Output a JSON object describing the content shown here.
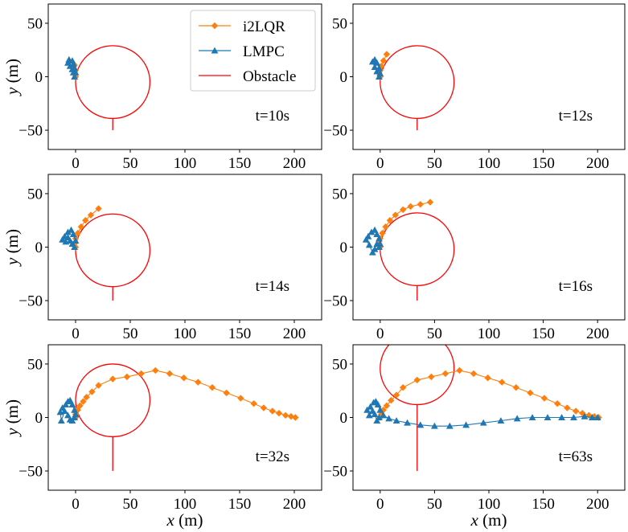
{
  "legend": {
    "placement": "top-right of first panel",
    "entries": [
      {
        "key": "i2lqr",
        "label": "i2LQR",
        "color": "#ff7f0e",
        "marker": "diamond"
      },
      {
        "key": "lmpc",
        "label": "LMPC",
        "color": "#1f77b4",
        "marker": "triangle"
      },
      {
        "key": "obstacle",
        "label": "Obstacle",
        "color": "#ff0000",
        "marker": "line"
      }
    ]
  },
  "axis_labels": {
    "x_var": "x",
    "x_unit": " (m)",
    "y_var": "y",
    "y_unit": " (m)"
  },
  "chart_data": [
    {
      "type": "line",
      "time_label": "t=10s",
      "xlim": [
        -25,
        225
      ],
      "ylim": [
        -68,
        68
      ],
      "xticks": [
        0,
        50,
        100,
        150,
        200
      ],
      "yticks": [
        -50,
        0,
        50
      ],
      "obstacle": {
        "cx": 34,
        "cy": -5,
        "r": 34,
        "tail_to_y": -50
      },
      "series": [
        {
          "key": "i2lqr",
          "x": [
            0,
            -1,
            0,
            -2,
            -1
          ],
          "y": [
            0,
            3,
            6,
            9,
            11
          ]
        },
        {
          "key": "lmpc",
          "x": [
            -1,
            -2,
            -3,
            -5,
            -7,
            -6,
            -3,
            -2,
            -1,
            0
          ],
          "y": [
            0,
            4,
            7,
            10,
            13,
            16,
            15,
            12,
            8,
            4
          ]
        }
      ]
    },
    {
      "type": "line",
      "time_label": "t=12s",
      "xlim": [
        -25,
        225
      ],
      "ylim": [
        -68,
        68
      ],
      "xticks": [
        0,
        50,
        100,
        150,
        200
      ],
      "yticks": [
        -50,
        0,
        50
      ],
      "obstacle": {
        "cx": 34,
        "cy": -5,
        "r": 34,
        "tail_to_y": -50
      },
      "series": [
        {
          "key": "i2lqr",
          "x": [
            0,
            -1,
            0,
            1,
            3,
            6
          ],
          "y": [
            0,
            3,
            6,
            10,
            15,
            21
          ]
        },
        {
          "key": "lmpc",
          "x": [
            -1,
            -3,
            -5,
            -7,
            -5,
            -3,
            -1,
            0
          ],
          "y": [
            0,
            5,
            9,
            14,
            16,
            13,
            8,
            3
          ]
        }
      ]
    },
    {
      "type": "line",
      "time_label": "t=14s",
      "xlim": [
        -25,
        225
      ],
      "ylim": [
        -68,
        68
      ],
      "xticks": [
        0,
        50,
        100,
        150,
        200
      ],
      "yticks": [
        -50,
        0,
        50
      ],
      "obstacle": {
        "cx": 34,
        "cy": -3,
        "r": 34,
        "tail_to_y": -50
      },
      "series": [
        {
          "key": "i2lqr",
          "x": [
            0,
            -1,
            0,
            2,
            5,
            9,
            14,
            21
          ],
          "y": [
            0,
            3,
            8,
            13,
            19,
            25,
            30,
            36
          ]
        },
        {
          "key": "lmpc",
          "x": [
            -1,
            -3,
            -5,
            -7,
            -9,
            -12,
            -10,
            -7,
            -4,
            -2,
            0
          ],
          "y": [
            0,
            3,
            6,
            9,
            5,
            7,
            10,
            14,
            16,
            12,
            6
          ]
        }
      ]
    },
    {
      "type": "line",
      "time_label": "t=16s",
      "xlim": [
        -25,
        225
      ],
      "ylim": [
        -68,
        68
      ],
      "xticks": [
        0,
        50,
        100,
        150,
        200
      ],
      "yticks": [
        -50,
        0,
        50
      ],
      "obstacle": {
        "cx": 34,
        "cy": -2,
        "r": 34,
        "tail_to_y": -50
      },
      "series": [
        {
          "key": "i2lqr",
          "x": [
            0,
            -1,
            0,
            2,
            5,
            9,
            14,
            21,
            28,
            37,
            46
          ],
          "y": [
            0,
            3,
            8,
            13,
            19,
            25,
            30,
            35,
            38,
            40,
            42
          ]
        },
        {
          "key": "lmpc",
          "x": [
            -1,
            -3,
            -5,
            -7,
            -10,
            -13,
            -11,
            -8,
            -5,
            -3,
            -1,
            0
          ],
          "y": [
            0,
            3,
            -2,
            -5,
            2,
            7,
            10,
            14,
            16,
            12,
            8,
            3
          ]
        }
      ]
    },
    {
      "type": "line",
      "time_label": "t=32s",
      "xlim": [
        -25,
        225
      ],
      "ylim": [
        -68,
        68
      ],
      "xticks": [
        0,
        50,
        100,
        150,
        200
      ],
      "yticks": [
        -50,
        0,
        50
      ],
      "obstacle": {
        "cx": 34,
        "cy": 16,
        "r": 34,
        "tail_to_y": -50
      },
      "series": [
        {
          "key": "i2lqr",
          "x": [
            0,
            0,
            2,
            4,
            7,
            10,
            15,
            21,
            34,
            47,
            60,
            73,
            86,
            99,
            112,
            125,
            138,
            151,
            163,
            172,
            180,
            186,
            192,
            197,
            201
          ],
          "y": [
            0,
            3,
            7,
            11,
            15,
            19,
            24,
            30,
            36,
            38,
            41,
            44,
            41,
            37,
            33,
            28,
            23,
            18,
            13,
            9,
            6,
            4,
            2,
            1,
            0
          ]
        },
        {
          "key": "lmpc",
          "x": [
            -1,
            -3,
            -5,
            -7,
            -10,
            -13,
            -14,
            -12,
            -9,
            -7,
            -5,
            -3,
            -1,
            0
          ],
          "y": [
            0,
            -3,
            -2,
            2,
            6,
            -3,
            5,
            9,
            12,
            15,
            16,
            12,
            7,
            3
          ]
        }
      ]
    },
    {
      "type": "line",
      "time_label": "t=63s",
      "xlim": [
        -25,
        225
      ],
      "ylim": [
        -68,
        68
      ],
      "xticks": [
        0,
        50,
        100,
        150,
        200
      ],
      "yticks": [
        -50,
        0,
        50
      ],
      "obstacle": {
        "cx": 34,
        "cy": 46,
        "r": 34,
        "tail_to_y": -50
      },
      "series": [
        {
          "key": "i2lqr",
          "x": [
            0,
            1,
            3,
            6,
            10,
            15,
            21,
            34,
            47,
            60,
            73,
            86,
            99,
            112,
            125,
            138,
            151,
            163,
            172,
            180,
            186,
            192,
            197,
            201
          ],
          "y": [
            0,
            3,
            7,
            11,
            16,
            21,
            28,
            35,
            38,
            41,
            44,
            41,
            37,
            33,
            28,
            23,
            18,
            13,
            9,
            6,
            4,
            2,
            1,
            0
          ]
        },
        {
          "key": "lmpc",
          "x": [
            -1,
            -3,
            -5,
            -7,
            -10,
            -12,
            -9,
            -6,
            -4,
            -2,
            0,
            3,
            8,
            15,
            25,
            37,
            50,
            64,
            79,
            95,
            111,
            126,
            140,
            154,
            167,
            178,
            188,
            195,
            200
          ],
          "y": [
            0,
            -3,
            3,
            6,
            2,
            7,
            10,
            14,
            15,
            12,
            7,
            2,
            -1,
            -3,
            -5,
            -7,
            -8,
            -8,
            -7,
            -5,
            -3,
            -1,
            0,
            0,
            0,
            0,
            1,
            0,
            0
          ]
        }
      ]
    }
  ]
}
